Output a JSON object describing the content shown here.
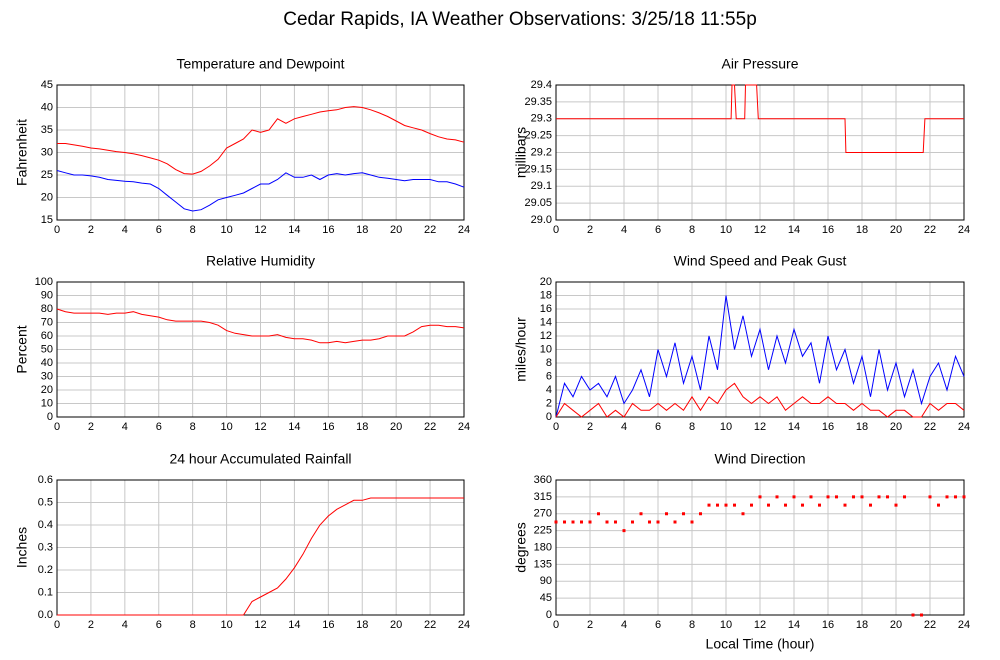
{
  "title": "Cedar Rapids, IA Weather Observations: 3/25/18 11:55p",
  "chart_data": [
    {
      "type": "line",
      "title": "Temperature and Dewpoint",
      "ylabel": "Fahrenheit",
      "x": [
        0,
        0.5,
        1,
        1.5,
        2,
        2.5,
        3,
        3.5,
        4,
        4.5,
        5,
        5.5,
        6,
        6.5,
        7,
        7.5,
        8,
        8.5,
        9,
        9.5,
        10,
        10.5,
        11,
        11.5,
        12,
        12.5,
        13,
        13.5,
        14,
        14.5,
        15,
        15.5,
        16,
        16.5,
        17,
        17.5,
        18,
        18.5,
        19,
        19.5,
        20,
        20.5,
        21,
        21.5,
        22,
        22.5,
        23,
        23.5,
        24
      ],
      "series": [
        {
          "color": "#ff0000",
          "values": [
            32,
            32,
            31.7,
            31.4,
            31,
            30.8,
            30.5,
            30.2,
            30,
            29.7,
            29.3,
            28.8,
            28.3,
            27.5,
            26.2,
            25.3,
            25.2,
            25.8,
            27,
            28.5,
            31,
            32,
            33,
            35,
            34.5,
            35,
            37.5,
            36.5,
            37.5,
            38,
            38.5,
            39,
            39.3,
            39.5,
            40,
            40.2,
            40,
            39.5,
            38.8,
            38,
            37,
            36,
            35.5,
            35,
            34.2,
            33.5,
            33,
            32.8,
            32.3
          ]
        },
        {
          "color": "#0000ff",
          "values": [
            26,
            25.5,
            25,
            25,
            24.8,
            24.5,
            24,
            23.8,
            23.6,
            23.5,
            23.2,
            23,
            22,
            20.5,
            19,
            17.5,
            17,
            17.3,
            18.3,
            19.5,
            20,
            20.5,
            21,
            22,
            23,
            23,
            24,
            25.5,
            24.5,
            24.5,
            25,
            24,
            25,
            25.3,
            25,
            25.3,
            25.5,
            25,
            24.5,
            24.3,
            24,
            23.7,
            24,
            24,
            24,
            23.5,
            23.5,
            23,
            22.3
          ]
        }
      ],
      "xlim": [
        0,
        24
      ],
      "xticks": [
        0,
        2,
        4,
        6,
        8,
        10,
        12,
        14,
        16,
        18,
        20,
        22,
        24
      ],
      "ylim": [
        15,
        45
      ],
      "yticks": [
        15,
        20,
        25,
        30,
        35,
        40,
        45
      ],
      "grid": true
    },
    {
      "type": "line",
      "title": "Air Pressure",
      "ylabel": "millibars",
      "x": [
        0,
        10.3,
        10.35,
        10.5,
        10.6,
        11.1,
        11.15,
        11.8,
        11.9,
        17,
        17.05,
        21.6,
        21.7,
        24
      ],
      "series": [
        {
          "color": "#ff0000",
          "values": [
            29.3,
            29.3,
            29.4,
            29.4,
            29.3,
            29.3,
            29.4,
            29.4,
            29.3,
            29.3,
            29.2,
            29.2,
            29.3,
            29.3
          ]
        }
      ],
      "xlim": [
        0,
        24
      ],
      "xticks": [
        0,
        2,
        4,
        6,
        8,
        10,
        12,
        14,
        16,
        18,
        20,
        22,
        24
      ],
      "ylim": [
        29.0,
        29.4
      ],
      "yticks": [
        {
          "value": 29.0,
          "label": "29.0"
        },
        29.05,
        29.1,
        29.15,
        29.2,
        29.25,
        29.3,
        29.35,
        29.4
      ],
      "grid": true
    },
    {
      "type": "line",
      "title": "Relative Humidity",
      "ylabel": "Percent",
      "x": [
        0,
        0.5,
        1,
        1.5,
        2,
        2.5,
        3,
        3.5,
        4,
        4.5,
        5,
        5.5,
        6,
        6.5,
        7,
        7.5,
        8,
        8.5,
        9,
        9.5,
        10,
        10.5,
        11,
        11.5,
        12,
        12.5,
        13,
        13.5,
        14,
        14.5,
        15,
        15.5,
        16,
        16.5,
        17,
        17.5,
        18,
        18.5,
        19,
        19.5,
        20,
        20.5,
        21,
        21.5,
        22,
        22.5,
        23,
        23.5,
        24
      ],
      "series": [
        {
          "color": "#ff0000",
          "values": [
            80,
            78,
            77,
            77,
            77,
            77,
            76,
            77,
            77,
            78,
            76,
            75,
            74,
            72,
            71,
            71,
            71,
            71,
            70,
            68,
            64,
            62,
            61,
            60,
            60,
            60,
            61,
            59,
            58,
            58,
            57,
            55,
            55,
            56,
            55,
            56,
            57,
            57,
            58,
            60,
            60,
            60,
            63,
            67,
            68,
            68,
            67,
            67,
            66
          ]
        }
      ],
      "xlim": [
        0,
        24
      ],
      "xticks": [
        0,
        2,
        4,
        6,
        8,
        10,
        12,
        14,
        16,
        18,
        20,
        22,
        24
      ],
      "ylim": [
        0,
        100
      ],
      "yticks": [
        0,
        10,
        20,
        30,
        40,
        50,
        60,
        70,
        80,
        90,
        100
      ],
      "grid": true
    },
    {
      "type": "line",
      "title": "Wind Speed and Peak Gust",
      "ylabel": "miles/hour",
      "x": [
        0,
        0.5,
        1,
        1.5,
        2,
        2.5,
        3,
        3.5,
        4,
        4.5,
        5,
        5.5,
        6,
        6.5,
        7,
        7.5,
        8,
        8.5,
        9,
        9.5,
        10,
        10.5,
        11,
        11.5,
        12,
        12.5,
        13,
        13.5,
        14,
        14.5,
        15,
        15.5,
        16,
        16.5,
        17,
        17.5,
        18,
        18.5,
        19,
        19.5,
        20,
        20.5,
        21,
        21.5,
        22,
        22.5,
        23,
        23.5,
        24
      ],
      "series": [
        {
          "color": "#0000ff",
          "values": [
            0,
            5,
            3,
            6,
            4,
            5,
            3,
            6,
            2,
            4,
            7,
            3,
            10,
            6,
            11,
            5,
            9,
            4,
            12,
            7,
            18,
            10,
            15,
            9,
            13,
            7,
            12,
            8,
            13,
            9,
            11,
            5,
            12,
            7,
            10,
            5,
            9,
            3,
            10,
            4,
            8,
            3,
            7,
            2,
            6,
            8,
            4,
            9,
            6
          ]
        },
        {
          "color": "#ff0000",
          "values": [
            0,
            2,
            1,
            0,
            1,
            2,
            0,
            1,
            0,
            2,
            1,
            1,
            2,
            1,
            2,
            1,
            3,
            1,
            3,
            2,
            4,
            5,
            3,
            2,
            3,
            2,
            3,
            1,
            2,
            3,
            2,
            2,
            3,
            2,
            2,
            1,
            2,
            1,
            1,
            0,
            1,
            1,
            0,
            0,
            2,
            1,
            2,
            2,
            1
          ]
        }
      ],
      "xlim": [
        0,
        24
      ],
      "xticks": [
        0,
        2,
        4,
        6,
        8,
        10,
        12,
        14,
        16,
        18,
        20,
        22,
        24
      ],
      "ylim": [
        0,
        20
      ],
      "yticks": [
        0,
        2,
        4,
        6,
        8,
        10,
        12,
        14,
        16,
        18,
        20
      ],
      "grid": true
    },
    {
      "type": "line",
      "title": "24 hour Accumulated Rainfall",
      "ylabel": "Inches",
      "x": [
        0,
        11,
        11.5,
        12,
        12.5,
        13,
        13.5,
        14,
        14.5,
        15,
        15.5,
        16,
        16.5,
        17,
        17.5,
        18,
        18.5,
        24
      ],
      "series": [
        {
          "color": "#ff0000",
          "values": [
            0,
            0,
            0.06,
            0.08,
            0.1,
            0.12,
            0.16,
            0.21,
            0.27,
            0.34,
            0.4,
            0.44,
            0.47,
            0.49,
            0.51,
            0.51,
            0.52,
            0.52
          ]
        }
      ],
      "xlim": [
        0,
        24
      ],
      "xticks": [
        0,
        2,
        4,
        6,
        8,
        10,
        12,
        14,
        16,
        18,
        20,
        22,
        24
      ],
      "ylim": [
        0,
        0.6
      ],
      "yticks": [
        {
          "value": 0,
          "label": "0.0"
        },
        0.1,
        0.2,
        0.3,
        0.4,
        0.5,
        0.6
      ],
      "grid": true
    },
    {
      "type": "scatter",
      "title": "Wind Direction",
      "ylabel": "degrees",
      "xlabel": "Local Time (hour)",
      "x": [
        0,
        0.5,
        1,
        1.5,
        2,
        2.5,
        3,
        3.5,
        4,
        4.5,
        5,
        5.5,
        6,
        6.5,
        7,
        7.5,
        8,
        8.5,
        9,
        9.5,
        10,
        10.5,
        11,
        11.5,
        12,
        12.5,
        13,
        13.5,
        14,
        14.5,
        15,
        15.5,
        16,
        16.5,
        17,
        17.5,
        18,
        18.5,
        19,
        19.5,
        20,
        20.5,
        21,
        21.5,
        22,
        22.5,
        23,
        23.5,
        24
      ],
      "series": [
        {
          "color": "#ff0000",
          "values": [
            248,
            248,
            248,
            248,
            248,
            270,
            248,
            248,
            225,
            248,
            270,
            248,
            248,
            270,
            248,
            270,
            248,
            270,
            293,
            293,
            293,
            293,
            270,
            293,
            315,
            293,
            315,
            293,
            315,
            293,
            315,
            293,
            315,
            315,
            293,
            315,
            315,
            293,
            315,
            315,
            293,
            315,
            0,
            0,
            315,
            293,
            315,
            315,
            315
          ]
        }
      ],
      "xlim": [
        0,
        24
      ],
      "xticks": [
        0,
        2,
        4,
        6,
        8,
        10,
        12,
        14,
        16,
        18,
        20,
        22,
        24
      ],
      "ylim": [
        0,
        360
      ],
      "yticks": [
        0,
        45,
        90,
        135,
        180,
        225,
        270,
        315,
        360
      ],
      "grid": true
    }
  ]
}
